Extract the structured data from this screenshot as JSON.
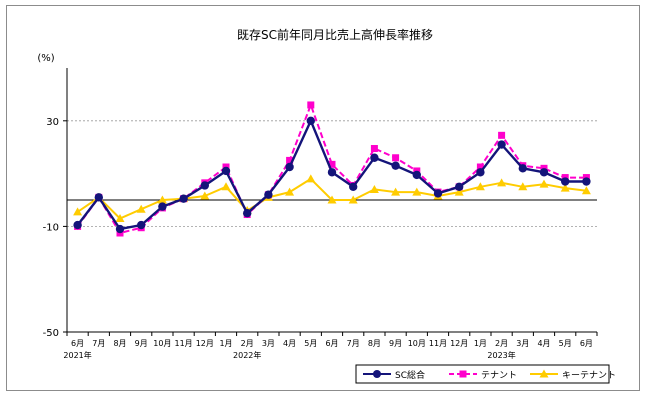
{
  "chart_data": {
    "type": "line",
    "title": "既存SC前年同月比売上高伸長率推移",
    "ylabel": "(%)",
    "xlabel": "",
    "ylim": [
      -50,
      50
    ],
    "yticks": [
      30,
      -10,
      -50
    ],
    "grid": true,
    "legend_position": "bottom-right",
    "categories": [
      "6月",
      "7月",
      "8月",
      "9月",
      "10月",
      "11月",
      "12月",
      "1月",
      "2月",
      "3月",
      "4月",
      "5月",
      "6月",
      "7月",
      "8月",
      "9月",
      "10月",
      "11月",
      "12月",
      "1月",
      "2月",
      "3月",
      "4月",
      "5月",
      "6月"
    ],
    "year_labels": [
      {
        "index": 0,
        "text": "2021年"
      },
      {
        "index": 8,
        "text": "2022年"
      },
      {
        "index": 20,
        "text": "2023年"
      }
    ],
    "series": [
      {
        "name": "SC総合",
        "color": "#14147a",
        "style": "solid",
        "marker": "circle",
        "values": [
          -9.5,
          1.0,
          -11.0,
          -9.5,
          -2.5,
          0.5,
          5.5,
          11.0,
          -5.0,
          2.0,
          12.5,
          30.0,
          10.5,
          5.0,
          16.0,
          13.0,
          9.5,
          2.5,
          5.0,
          10.5,
          21.0,
          12.0,
          10.5,
          7.0,
          7.0
        ]
      },
      {
        "name": "テナント",
        "color": "#ff00cc",
        "style": "dashed",
        "marker": "square",
        "values": [
          -10.0,
          1.0,
          -12.5,
          -10.5,
          -3.0,
          0.5,
          6.5,
          12.5,
          -5.5,
          2.0,
          15.0,
          36.0,
          13.5,
          5.5,
          19.5,
          16.0,
          11.0,
          3.0,
          5.0,
          12.5,
          24.5,
          13.0,
          12.0,
          8.5,
          8.5
        ]
      },
      {
        "name": "キーテナント",
        "color": "#ffcc00",
        "style": "solid",
        "marker": "triangle",
        "values": [
          -4.5,
          1.0,
          -7.0,
          -3.5,
          0.0,
          0.5,
          1.5,
          5.0,
          -4.0,
          1.0,
          3.0,
          8.0,
          0.0,
          0.0,
          4.0,
          3.0,
          3.0,
          1.5,
          3.0,
          5.0,
          6.5,
          5.0,
          6.0,
          4.5,
          3.5
        ]
      }
    ]
  }
}
